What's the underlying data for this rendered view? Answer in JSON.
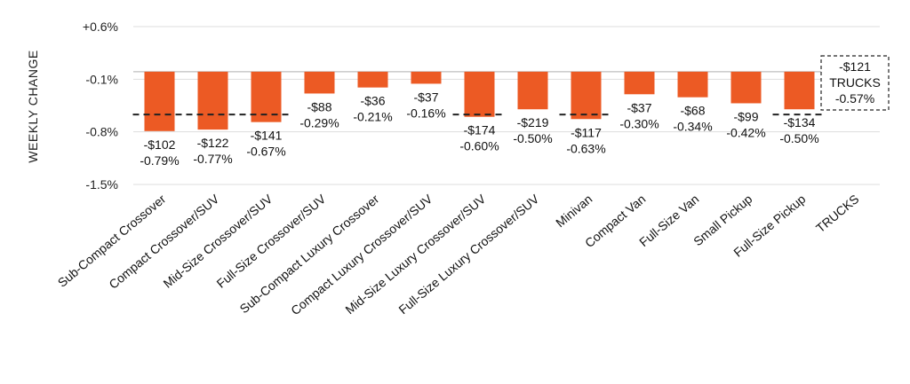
{
  "chart_data": {
    "type": "bar",
    "ylabel": "WEEKLY CHANGE",
    "yticks": [
      "+0.6%",
      "-0.1%",
      "-0.8%",
      "-1.5%"
    ],
    "ytick_values": [
      0.6,
      -0.1,
      -0.8,
      -1.5
    ],
    "ylim": [
      -1.5,
      0.6
    ],
    "grid": true,
    "bar_color": "#EC5A24",
    "categories": [
      "Sub-Compact Crossover",
      "Compact Crossover/SUV",
      "Mid-Size Crossover/SUV",
      "Full-Size Crossover/SUV",
      "Sub-Compact Luxury Crossover",
      "Compact Luxury Crossover/SUV",
      "Mid-Size Luxury Crossover/SUV",
      "Full-Size Luxury Crossover/SUV",
      "Minivan",
      "Compact Van",
      "Full-Size Van",
      "Small Pickup",
      "Full-Size Pickup",
      "TRUCKS"
    ],
    "values": [
      -0.79,
      -0.77,
      -0.67,
      -0.29,
      -0.21,
      -0.16,
      -0.6,
      -0.5,
      -0.63,
      -0.3,
      -0.34,
      -0.42,
      -0.5,
      null
    ],
    "dollar_labels": [
      "-$102",
      "-$122",
      "-$141",
      "-$88",
      "-$36",
      "-$37",
      "-$174",
      "-$219",
      "-$117",
      "-$37",
      "-$68",
      "-$99",
      "-$134",
      ""
    ],
    "pct_labels": [
      "-0.79%",
      "-0.77%",
      "-0.67%",
      "-0.29%",
      "-0.21%",
      "-0.16%",
      "-0.60%",
      "-0.50%",
      "-0.63%",
      "-0.30%",
      "-0.34%",
      "-0.42%",
      "-0.50%",
      ""
    ],
    "segment_averages": [
      {
        "from": 0,
        "to": 2,
        "value": -0.57
      },
      {
        "from": 6,
        "to": 6,
        "value": -0.57
      },
      {
        "from": 8,
        "to": 8,
        "value": -0.57
      },
      {
        "from": 12,
        "to": 12,
        "value": -0.57
      }
    ],
    "trucks_summary": {
      "dollar": "-$121",
      "label": "TRUCKS",
      "pct": "-0.57%",
      "value": -0.57
    }
  }
}
